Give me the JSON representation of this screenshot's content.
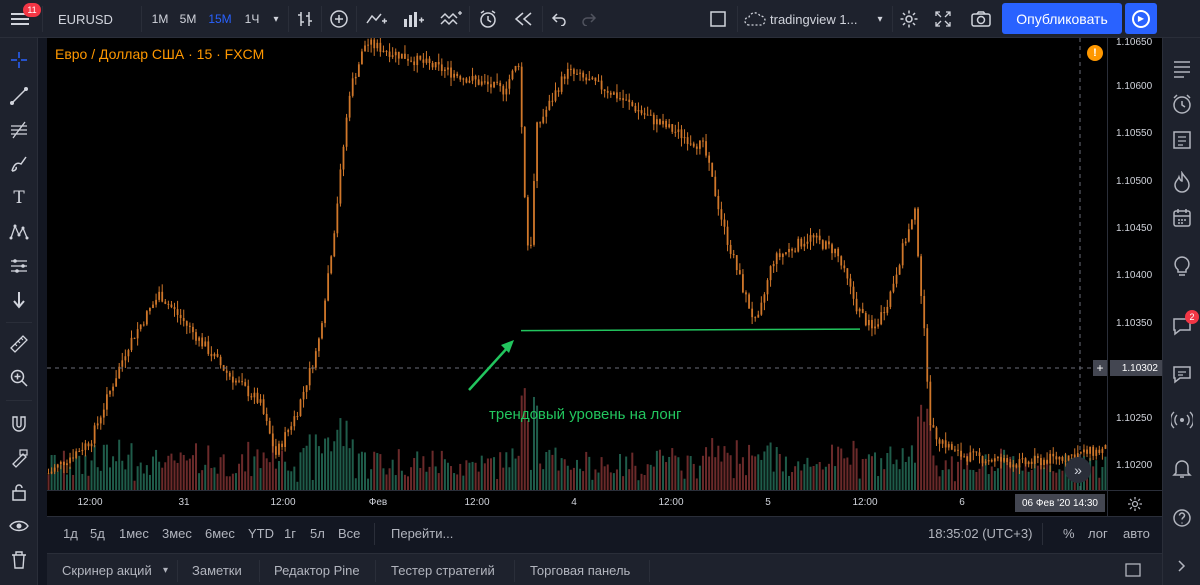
{
  "topbar": {
    "menu_badge": "11",
    "symbol": "EURUSD",
    "intervals": [
      "1М",
      "5М",
      "15М",
      "1Ч"
    ],
    "active_interval": "15М",
    "layout_name": "tradingview 1...",
    "publish_label": "Опубликовать"
  },
  "chart": {
    "legend": "Евро / Доллар США · 15 · FXCM",
    "annotation": "трендовый уровень на лонг",
    "colors": {
      "candle": "#d0772a",
      "trend_line": "#22c55e",
      "vol_up": "#1f5c4a",
      "vol_down": "#6b2a2a",
      "crosshair": "#6a6d78"
    }
  },
  "chart_data": {
    "type": "candlestick",
    "symbol": "EURUSD",
    "interval": "15",
    "ylim": [
      1.1016,
      1.10656
    ],
    "y_ticks": [
      1.102,
      1.1025,
      1.103,
      1.1035,
      1.104,
      1.1045,
      1.105,
      1.1055,
      1.106,
      1.1065
    ],
    "y_tick_labels": [
      "1.10200",
      "1.10250",
      "1.10300",
      "1.10350",
      "1.10400",
      "1.10450",
      "1.10500",
      "1.10550",
      "1.10600",
      "1.10650"
    ],
    "x_tick_labels": [
      "12:00",
      "31",
      "12:00",
      "Фев",
      "12:00",
      "4",
      "12:00",
      "5",
      "12:00",
      "6"
    ],
    "trend_line_price": 1.10346,
    "close_path": [
      {
        "t": 0.0,
        "p": 1.10195
      },
      {
        "t": 0.04,
        "p": 1.1023
      },
      {
        "t": 0.075,
        "p": 1.1033
      },
      {
        "t": 0.105,
        "p": 1.10385
      },
      {
        "t": 0.14,
        "p": 1.1034
      },
      {
        "t": 0.17,
        "p": 1.103
      },
      {
        "t": 0.2,
        "p": 1.1027
      },
      {
        "t": 0.215,
        "p": 1.10215
      },
      {
        "t": 0.235,
        "p": 1.1026
      },
      {
        "t": 0.255,
        "p": 1.1033
      },
      {
        "t": 0.27,
        "p": 1.1045
      },
      {
        "t": 0.285,
        "p": 1.106
      },
      {
        "t": 0.3,
        "p": 1.1065
      },
      {
        "t": 0.43,
        "p": 1.106
      },
      {
        "t": 0.445,
        "p": 1.1063
      },
      {
        "t": 0.45,
        "p": 1.105
      },
      {
        "t": 0.455,
        "p": 1.1041
      },
      {
        "t": 0.462,
        "p": 1.1056
      },
      {
        "t": 0.49,
        "p": 1.1062
      },
      {
        "t": 0.53,
        "p": 1.106
      },
      {
        "t": 0.57,
        "p": 1.1057
      },
      {
        "t": 0.62,
        "p": 1.1054
      },
      {
        "t": 0.64,
        "p": 1.1045
      },
      {
        "t": 0.66,
        "p": 1.1038
      },
      {
        "t": 0.67,
        "p": 1.1035
      },
      {
        "t": 0.685,
        "p": 1.1042
      },
      {
        "t": 0.72,
        "p": 1.10445
      },
      {
        "t": 0.745,
        "p": 1.1043
      },
      {
        "t": 0.765,
        "p": 1.1037
      },
      {
        "t": 0.78,
        "p": 1.10345
      },
      {
        "t": 0.795,
        "p": 1.1038
      },
      {
        "t": 0.81,
        "p": 1.1044
      },
      {
        "t": 0.82,
        "p": 1.1047
      },
      {
        "t": 0.83,
        "p": 1.1032
      },
      {
        "t": 0.835,
        "p": 1.1024
      },
      {
        "t": 0.86,
        "p": 1.10215
      },
      {
        "t": 0.92,
        "p": 1.10205
      },
      {
        "t": 1.0,
        "p": 1.1022
      }
    ]
  },
  "price_axis": {
    "labels": [
      "1.10650",
      "1.10600",
      "1.10550",
      "1.10500",
      "1.10450",
      "1.10400",
      "1.10350",
      "1.10250",
      "1.10200"
    ],
    "current": "1.10302"
  },
  "time_axis": {
    "labels": [
      "12:00",
      "31",
      "12:00",
      "Фев",
      "12:00",
      "4",
      "12:00",
      "5",
      "12:00",
      "6"
    ],
    "current": "06 Фев '20   14:30"
  },
  "rangebar": {
    "ranges": [
      "1д",
      "5д",
      "1мес",
      "3мес",
      "6мес",
      "YTD",
      "1г",
      "5л",
      "Все"
    ],
    "goto": "Перейти...",
    "clock": "18:35:02 (UTC+3)",
    "percent": "%",
    "log": "лог",
    "auto": "авто"
  },
  "bottom_tabs": [
    "Скринер акций",
    "Заметки",
    "Редактор Pine",
    "Тестер стратегий",
    "Торговая панель"
  ],
  "rightbar": {
    "chat_badge": "2"
  }
}
